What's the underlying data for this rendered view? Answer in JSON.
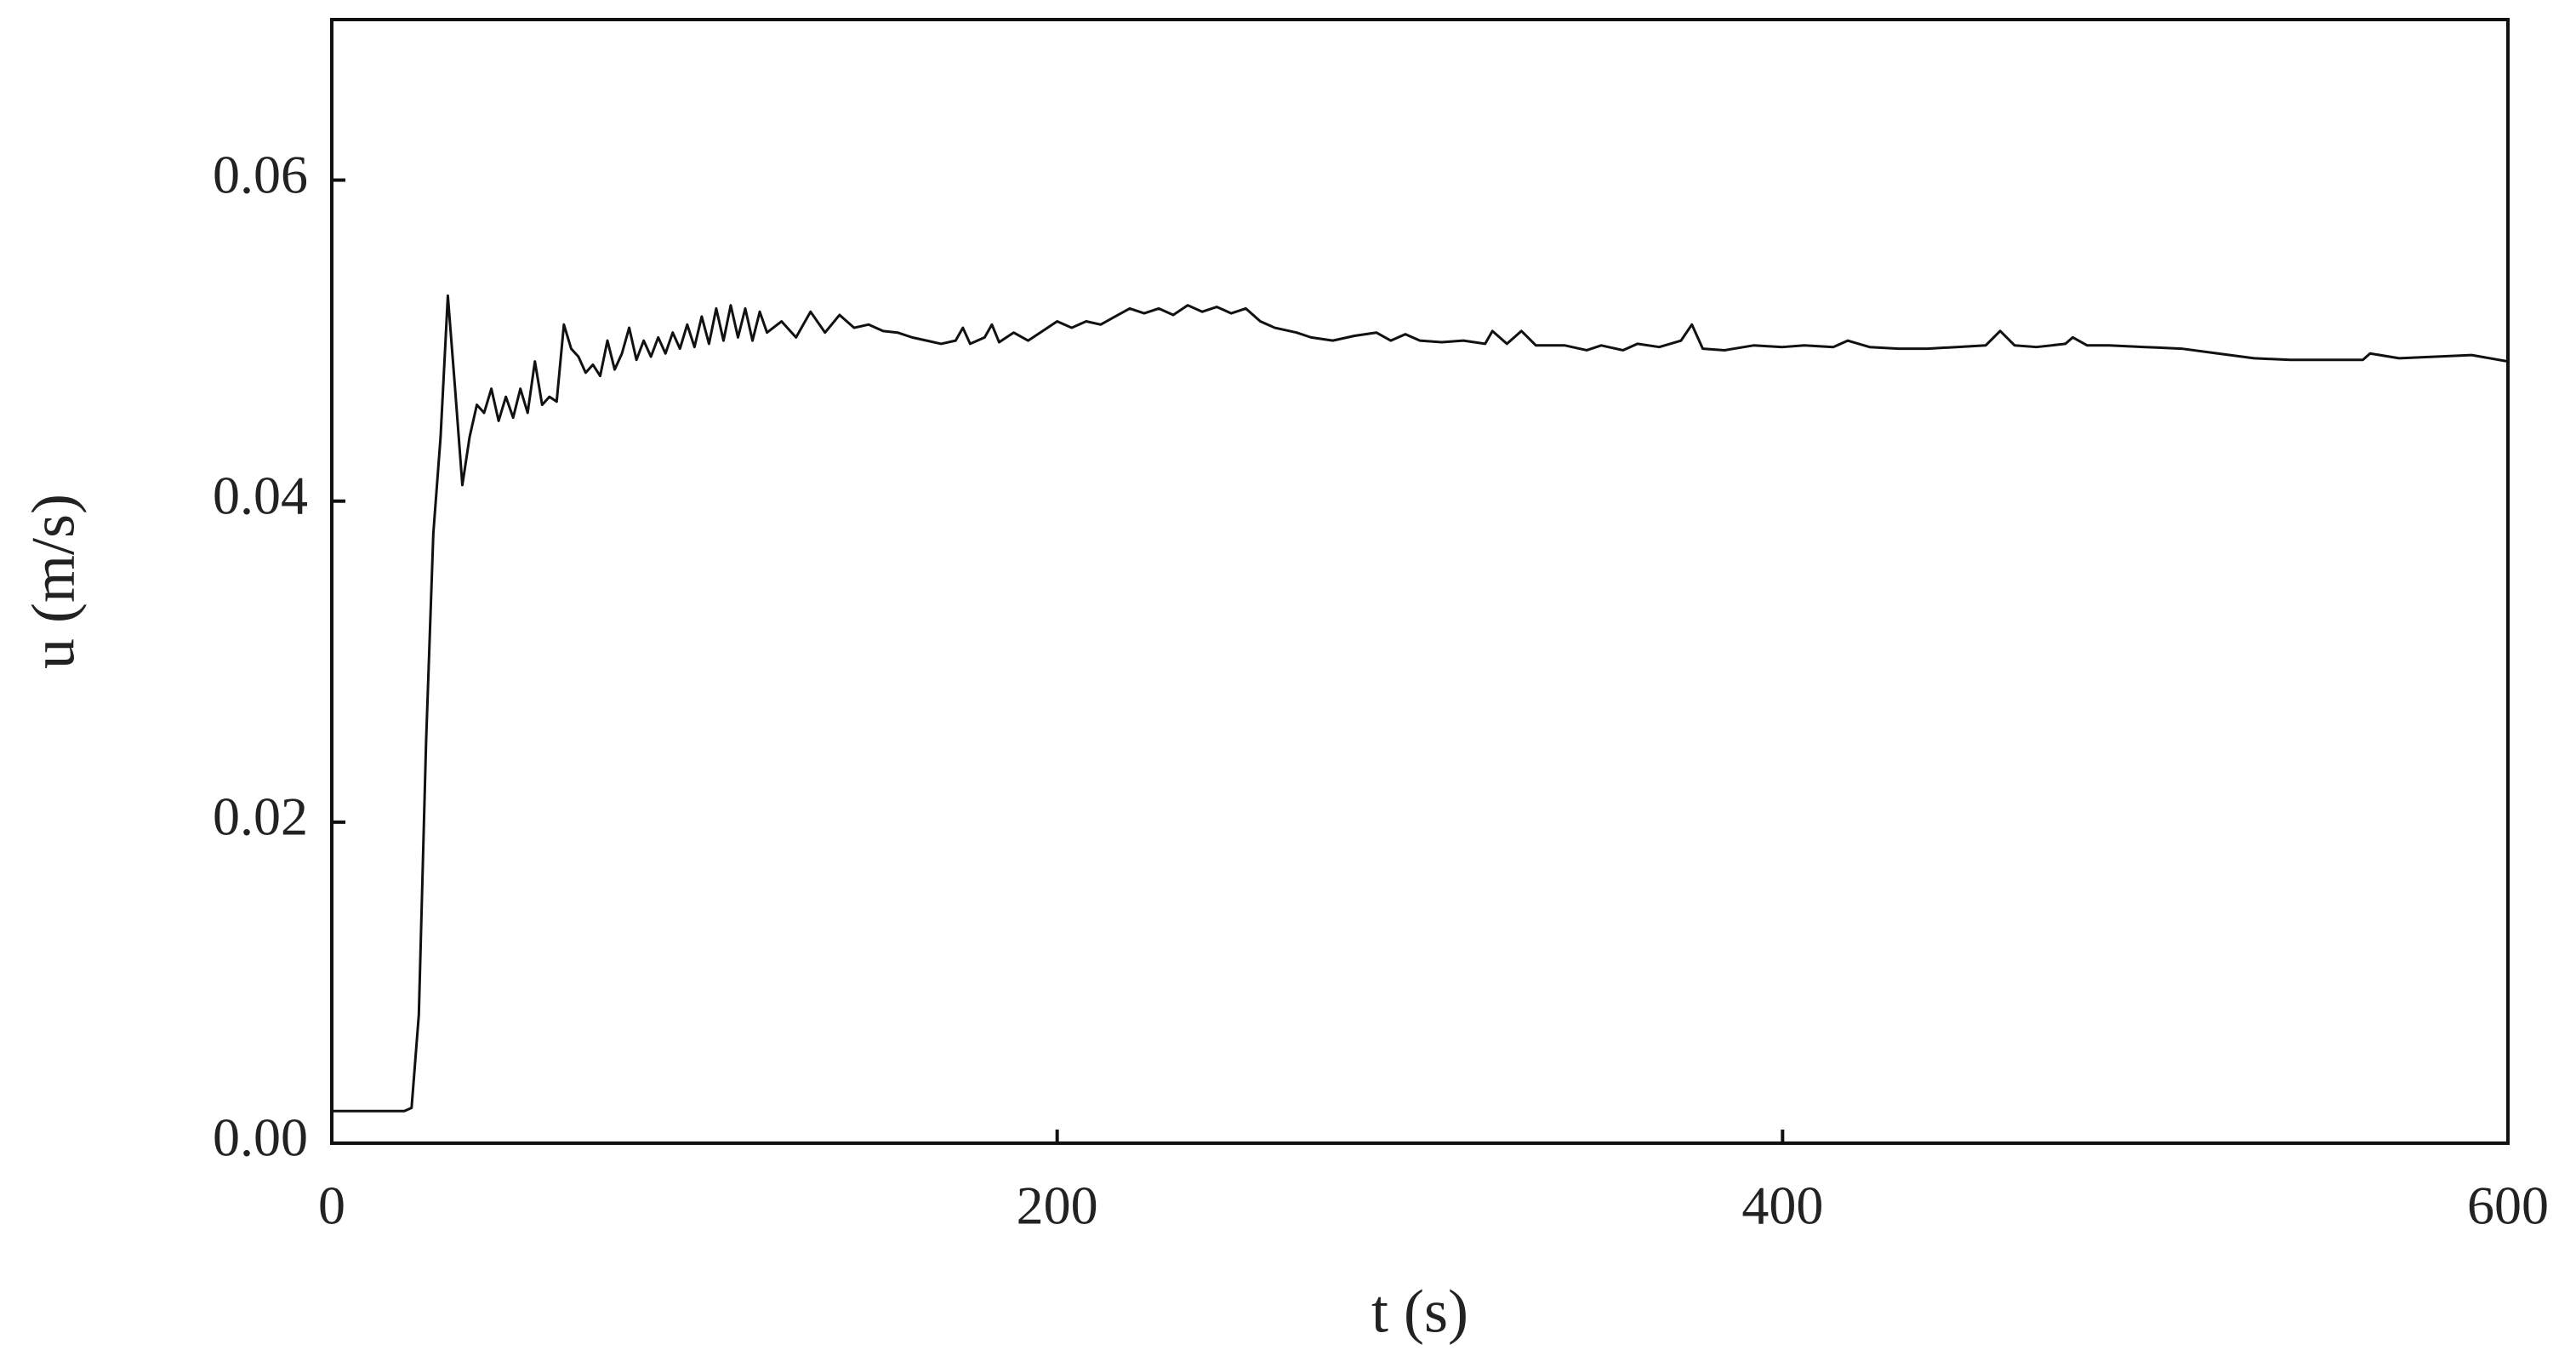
{
  "chart_data": {
    "type": "line",
    "x_label": "t (s)",
    "y_label": "u (m/s)",
    "xlim": [
      0,
      600
    ],
    "ylim": [
      0,
      0.07
    ],
    "xticks": [
      0,
      200,
      400,
      600
    ],
    "yticks": [
      {
        "value": 0,
        "label": "0.00"
      },
      0.02,
      0.04,
      0.06
    ],
    "grid": false,
    "color": "#111111",
    "x": [
      0,
      10,
      20,
      22,
      24,
      26,
      28,
      30,
      32,
      34,
      36,
      38,
      40,
      42,
      44,
      46,
      48,
      50,
      52,
      54,
      56,
      58,
      60,
      62,
      64,
      66,
      68,
      70,
      72,
      74,
      76,
      78,
      80,
      82,
      84,
      86,
      88,
      90,
      92,
      94,
      96,
      98,
      100,
      102,
      104,
      106,
      108,
      110,
      112,
      114,
      116,
      118,
      120,
      124,
      128,
      132,
      136,
      140,
      144,
      148,
      152,
      156,
      160,
      164,
      168,
      172,
      174,
      176,
      180,
      182,
      184,
      188,
      192,
      196,
      200,
      204,
      208,
      212,
      216,
      220,
      224,
      228,
      232,
      236,
      240,
      244,
      248,
      252,
      256,
      260,
      266,
      270,
      276,
      282,
      288,
      292,
      296,
      300,
      306,
      312,
      318,
      320,
      324,
      328,
      332,
      340,
      346,
      350,
      356,
      360,
      366,
      372,
      375,
      378,
      384,
      392,
      400,
      406,
      414,
      418,
      424,
      432,
      440,
      448,
      456,
      460,
      464,
      470,
      478,
      480,
      484,
      490,
      500,
      510,
      520,
      530,
      540,
      550,
      560,
      562,
      570,
      580,
      590,
      600
    ],
    "values": [
      0.002,
      0.002,
      0.002,
      0.0022,
      0.008,
      0.025,
      0.038,
      0.044,
      0.0528,
      0.047,
      0.041,
      0.044,
      0.046,
      0.0455,
      0.047,
      0.045,
      0.0465,
      0.0452,
      0.047,
      0.0455,
      0.0487,
      0.046,
      0.0465,
      0.0462,
      0.051,
      0.0495,
      0.049,
      0.048,
      0.0485,
      0.0478,
      0.05,
      0.0482,
      0.0492,
      0.0508,
      0.0488,
      0.05,
      0.049,
      0.0502,
      0.0492,
      0.0505,
      0.0495,
      0.051,
      0.0496,
      0.0515,
      0.0498,
      0.052,
      0.05,
      0.0522,
      0.0502,
      0.052,
      0.05,
      0.0518,
      0.0505,
      0.0512,
      0.0502,
      0.0518,
      0.0505,
      0.0516,
      0.0508,
      0.051,
      0.0506,
      0.0505,
      0.0502,
      0.05,
      0.0498,
      0.05,
      0.0508,
      0.0498,
      0.0502,
      0.051,
      0.0499,
      0.0505,
      0.05,
      0.0506,
      0.0512,
      0.0508,
      0.0512,
      0.051,
      0.0515,
      0.052,
      0.0517,
      0.052,
      0.0516,
      0.0522,
      0.0518,
      0.0521,
      0.0517,
      0.052,
      0.0512,
      0.0508,
      0.0505,
      0.0502,
      0.05,
      0.0503,
      0.0505,
      0.05,
      0.0504,
      0.05,
      0.0499,
      0.05,
      0.0498,
      0.0506,
      0.0498,
      0.0506,
      0.0497,
      0.0497,
      0.0494,
      0.0497,
      0.0494,
      0.0498,
      0.0496,
      0.05,
      0.051,
      0.0495,
      0.0494,
      0.0497,
      0.0496,
      0.0497,
      0.0496,
      0.05,
      0.0496,
      0.0495,
      0.0495,
      0.0496,
      0.0497,
      0.0506,
      0.0497,
      0.0496,
      0.0498,
      0.0502,
      0.0497,
      0.0497,
      0.0496,
      0.0495,
      0.0492,
      0.0489,
      0.0488,
      0.0488,
      0.0488,
      0.0492,
      0.0489,
      0.049,
      0.0491,
      0.0487
    ]
  }
}
